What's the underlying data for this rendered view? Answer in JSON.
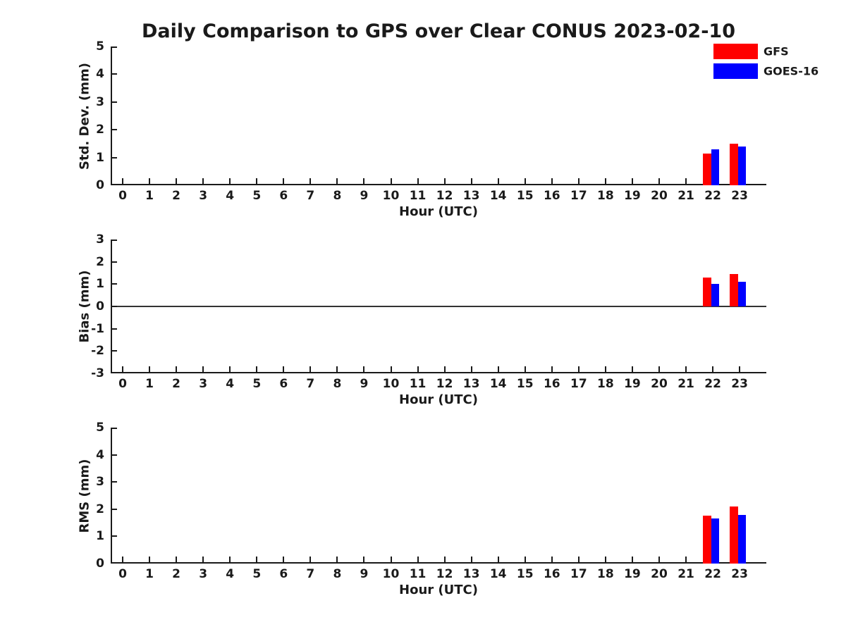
{
  "page": {
    "title": "Daily Comparison to GPS over Clear CONUS 2023-02-10"
  },
  "legend": {
    "items": [
      {
        "label": "GFS",
        "color": "#ff0000"
      },
      {
        "label": "GOES-16",
        "color": "#0000ff"
      }
    ]
  },
  "colors": {
    "gfs": "#ff0000",
    "goes16": "#0000ff",
    "axis": "#1a1a1a"
  },
  "chart_data": [
    {
      "type": "bar",
      "panel": "std-dev",
      "ylabel": "Std. Dev. (mm)",
      "xlabel": "Hour (UTC)",
      "ylim": [
        0,
        5
      ],
      "yticks": [
        0,
        1,
        2,
        3,
        4,
        5
      ],
      "categories": [
        0,
        1,
        2,
        3,
        4,
        5,
        6,
        7,
        8,
        9,
        10,
        11,
        12,
        13,
        14,
        15,
        16,
        17,
        18,
        19,
        20,
        21,
        22,
        23
      ],
      "zero_line": false,
      "series": [
        {
          "name": "GFS",
          "color": "#ff0000",
          "values": [
            null,
            null,
            null,
            null,
            null,
            null,
            null,
            null,
            null,
            null,
            null,
            null,
            null,
            null,
            null,
            null,
            null,
            null,
            null,
            null,
            null,
            null,
            1.15,
            1.5
          ]
        },
        {
          "name": "GOES-16",
          "color": "#0000ff",
          "values": [
            null,
            null,
            null,
            null,
            null,
            null,
            null,
            null,
            null,
            null,
            null,
            null,
            null,
            null,
            null,
            null,
            null,
            null,
            null,
            null,
            null,
            null,
            1.3,
            1.4
          ]
        }
      ]
    },
    {
      "type": "bar",
      "panel": "bias",
      "ylabel": "Bias (mm)",
      "xlabel": "Hour (UTC)",
      "ylim": [
        -3,
        3
      ],
      "yticks": [
        -3,
        -2,
        -1,
        0,
        1,
        2,
        3
      ],
      "categories": [
        0,
        1,
        2,
        3,
        4,
        5,
        6,
        7,
        8,
        9,
        10,
        11,
        12,
        13,
        14,
        15,
        16,
        17,
        18,
        19,
        20,
        21,
        22,
        23
      ],
      "zero_line": true,
      "series": [
        {
          "name": "GFS",
          "color": "#ff0000",
          "values": [
            null,
            null,
            null,
            null,
            null,
            null,
            null,
            null,
            null,
            null,
            null,
            null,
            null,
            null,
            null,
            null,
            null,
            null,
            null,
            null,
            null,
            null,
            1.3,
            1.45
          ]
        },
        {
          "name": "GOES-16",
          "color": "#0000ff",
          "values": [
            null,
            null,
            null,
            null,
            null,
            null,
            null,
            null,
            null,
            null,
            null,
            null,
            null,
            null,
            null,
            null,
            null,
            null,
            null,
            null,
            null,
            null,
            1.0,
            1.1
          ]
        }
      ]
    },
    {
      "type": "bar",
      "panel": "rms",
      "ylabel": "RMS (mm)",
      "xlabel": "Hour (UTC)",
      "ylim": [
        0,
        5
      ],
      "yticks": [
        0,
        1,
        2,
        3,
        4,
        5
      ],
      "categories": [
        0,
        1,
        2,
        3,
        4,
        5,
        6,
        7,
        8,
        9,
        10,
        11,
        12,
        13,
        14,
        15,
        16,
        17,
        18,
        19,
        20,
        21,
        22,
        23
      ],
      "zero_line": false,
      "series": [
        {
          "name": "GFS",
          "color": "#ff0000",
          "values": [
            null,
            null,
            null,
            null,
            null,
            null,
            null,
            null,
            null,
            null,
            null,
            null,
            null,
            null,
            null,
            null,
            null,
            null,
            null,
            null,
            null,
            null,
            1.75,
            2.1
          ]
        },
        {
          "name": "GOES-16",
          "color": "#0000ff",
          "values": [
            null,
            null,
            null,
            null,
            null,
            null,
            null,
            null,
            null,
            null,
            null,
            null,
            null,
            null,
            null,
            null,
            null,
            null,
            null,
            null,
            null,
            null,
            1.65,
            1.8
          ]
        }
      ]
    }
  ]
}
